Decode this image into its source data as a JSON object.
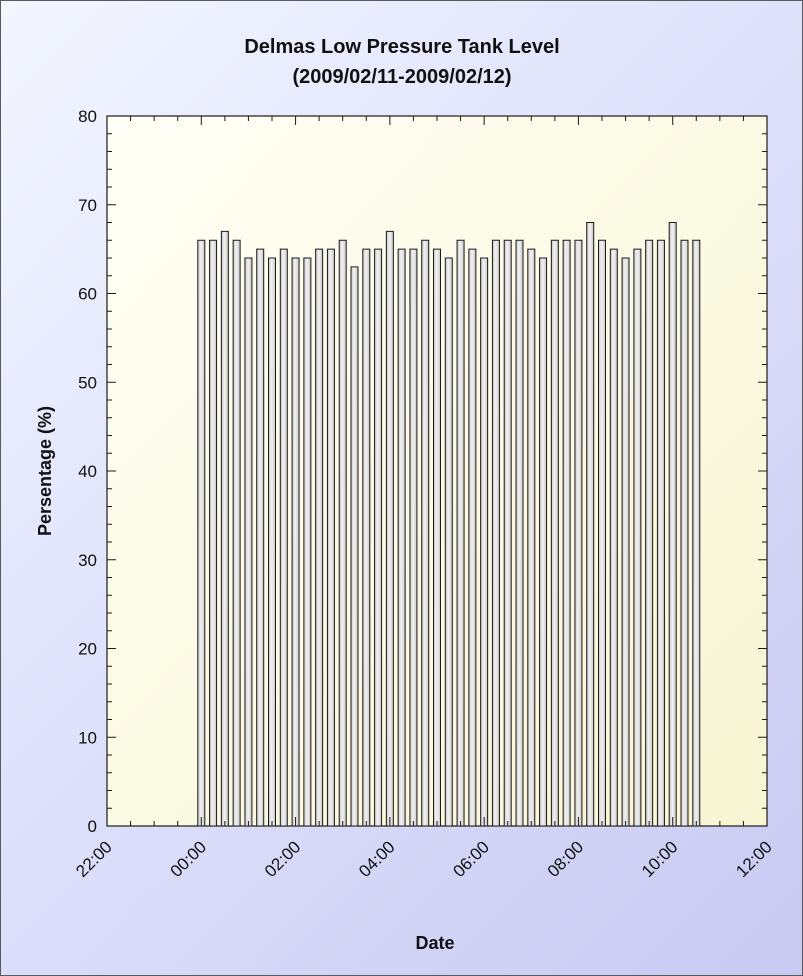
{
  "chart_data": {
    "type": "bar",
    "title": "Delmas Low Pressure Tank Level",
    "subtitle": "(2009/02/11-2009/02/12)",
    "xlabel": "Date",
    "ylabel": "Persentage (%)",
    "ylim": [
      0,
      80
    ],
    "yticks": [
      0,
      10,
      20,
      30,
      40,
      50,
      60,
      70,
      80
    ],
    "xlim": [
      "22:00",
      "12:00"
    ],
    "xticks": [
      "22:00",
      "00:00",
      "02:00",
      "04:00",
      "06:00",
      "08:00",
      "10:00",
      "12:00"
    ],
    "grid": false,
    "legend": "none",
    "x": [
      "00:00",
      "00:15",
      "00:30",
      "00:45",
      "01:00",
      "01:15",
      "01:30",
      "01:45",
      "02:00",
      "02:15",
      "02:30",
      "02:45",
      "03:00",
      "03:15",
      "03:30",
      "03:45",
      "04:00",
      "04:15",
      "04:30",
      "04:45",
      "05:00",
      "05:15",
      "05:30",
      "05:45",
      "06:00",
      "06:15",
      "06:30",
      "06:45",
      "07:00",
      "07:15",
      "07:30",
      "07:45",
      "08:00",
      "08:15",
      "08:30",
      "08:45",
      "09:00",
      "09:15",
      "09:30",
      "09:45",
      "10:00",
      "10:15",
      "10:30"
    ],
    "values": [
      66,
      66,
      67,
      66,
      64,
      65,
      64,
      65,
      64,
      64,
      65,
      65,
      66,
      63,
      65,
      65,
      67,
      65,
      65,
      66,
      65,
      64,
      66,
      65,
      64,
      66,
      66,
      66,
      65,
      64,
      66,
      66,
      66,
      68,
      66,
      65,
      64,
      65,
      66,
      66,
      68,
      66,
      66
    ],
    "colors": {
      "bar_fill": "#c8c8c8",
      "bar_highlight": "#f2f2f2",
      "bar_stroke": "#1a1a1a",
      "plot_bg_light": "#fffff6",
      "plot_bg_dark": "#f7f5d2"
    }
  }
}
